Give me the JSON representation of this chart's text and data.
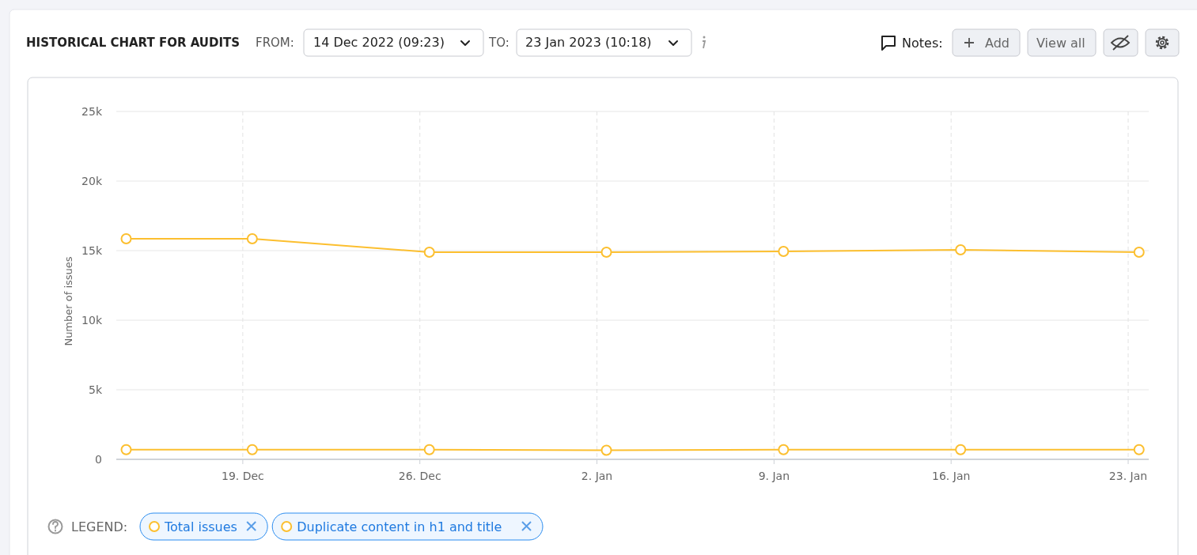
{
  "chart_data": {
    "type": "line",
    "title": "HISTORICAL CHART FOR AUDITS",
    "ylabel": "Number of issues",
    "x": [
      "2022-12-14T09:23",
      "2022-12-19T09:00",
      "2022-12-26T09:00",
      "2023-01-02T09:00",
      "2023-01-09T09:00",
      "2023-01-16T09:00",
      "2023-01-23T10:18"
    ],
    "series": [
      {
        "name": "Total issues",
        "color": "#fcbf2f",
        "values": [
          15850,
          15850,
          14890,
          14890,
          14940,
          15060,
          14890
        ]
      },
      {
        "name": "Duplicate content in h1 and title",
        "color": "#fcbf2f",
        "values": [
          700,
          700,
          700,
          650,
          700,
          700,
          700
        ]
      }
    ],
    "xlim": [
      "2022-12-14",
      "2023-01-23T19:30"
    ],
    "xticks": [
      {
        "value": "2022-12-19",
        "label": "19. Dec"
      },
      {
        "value": "2022-12-26",
        "label": "26. Dec"
      },
      {
        "value": "2023-01-02",
        "label": "2. Jan"
      },
      {
        "value": "2023-01-09",
        "label": "9. Jan"
      },
      {
        "value": "2023-01-16",
        "label": "16. Jan"
      },
      {
        "value": "2023-01-23",
        "label": "23. Jan"
      }
    ],
    "ylim": [
      0,
      25000
    ],
    "yticks": [
      {
        "value": 0,
        "label": "0"
      },
      {
        "value": 5000,
        "label": "5k"
      },
      {
        "value": 10000,
        "label": "10k"
      },
      {
        "value": 15000,
        "label": "15k"
      },
      {
        "value": 20000,
        "label": "20k"
      },
      {
        "value": 25000,
        "label": "25k"
      }
    ],
    "grid": true,
    "legend": "bottom",
    "marker": "circle",
    "line_style": "solid",
    "annotations": [
      "FROM:",
      "14 Dec 2022 (09:23)",
      "TO:",
      "23 Jan 2023 (10:18)",
      "Notes:",
      "Add",
      "View all",
      "LEGEND:"
    ]
  }
}
